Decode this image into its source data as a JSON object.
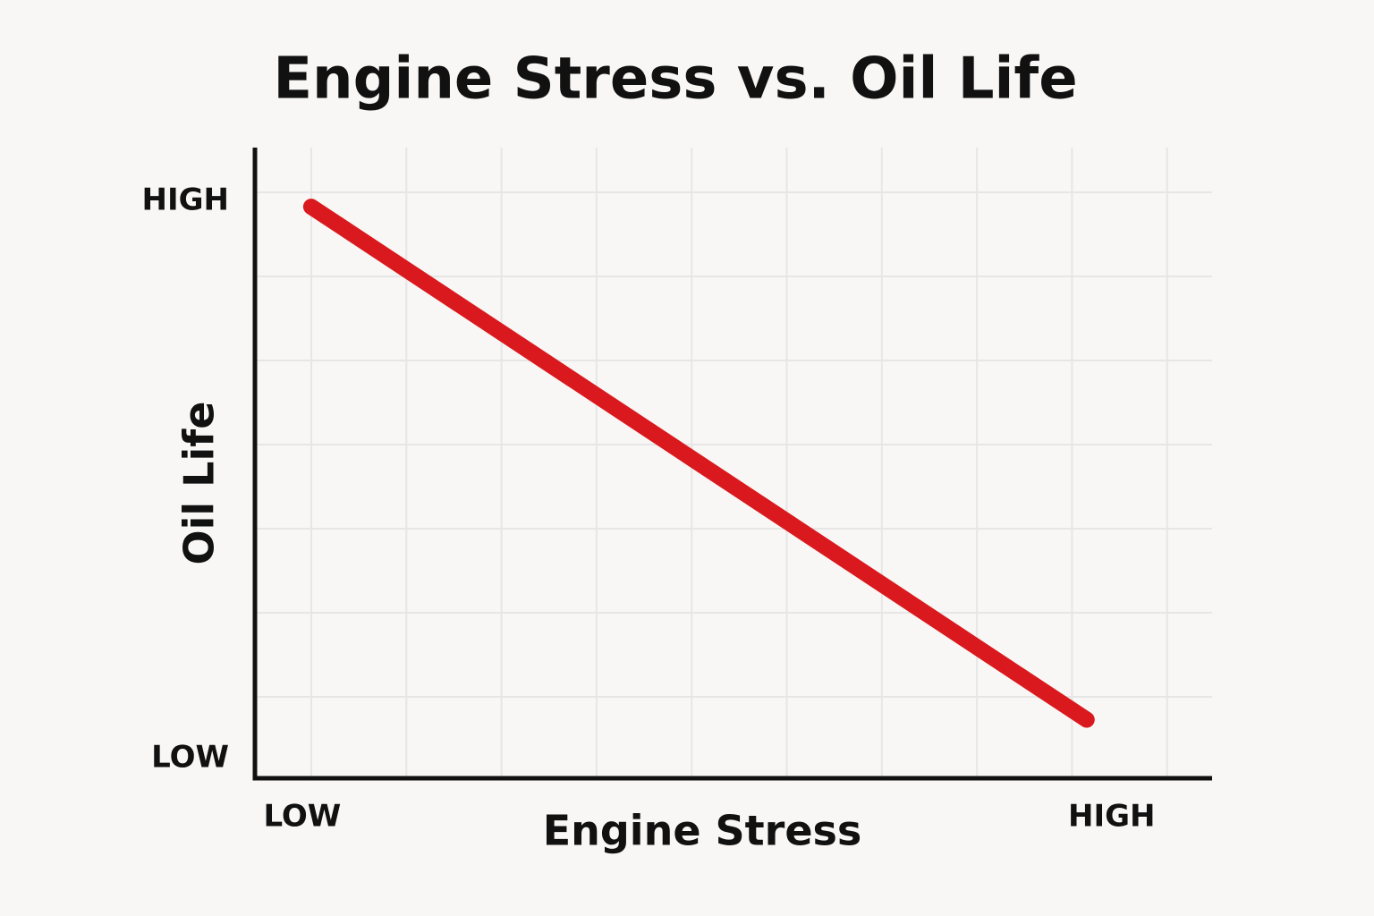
{
  "chart_data": {
    "type": "line",
    "title": "Engine Stress vs. Oil Life",
    "x_label": "Engine Stress",
    "y_label": "Oil Life",
    "x": [
      0,
      10.2
    ],
    "series": [
      {
        "color": "#d9191e",
        "values": [
          9.9,
          0.7
        ]
      }
    ],
    "xlim": [
      -0.74,
      11.85
    ],
    "ylim": [
      -0.35,
      10.96
    ],
    "xticks": [
      {
        "value": 0,
        "label": "LOW"
      },
      {
        "value": 10,
        "label": "HIGH"
      }
    ],
    "yticks": [
      {
        "value": 0,
        "label": "LOW"
      },
      {
        "value": 10,
        "label": "HIGH"
      }
    ],
    "grid": true
  }
}
